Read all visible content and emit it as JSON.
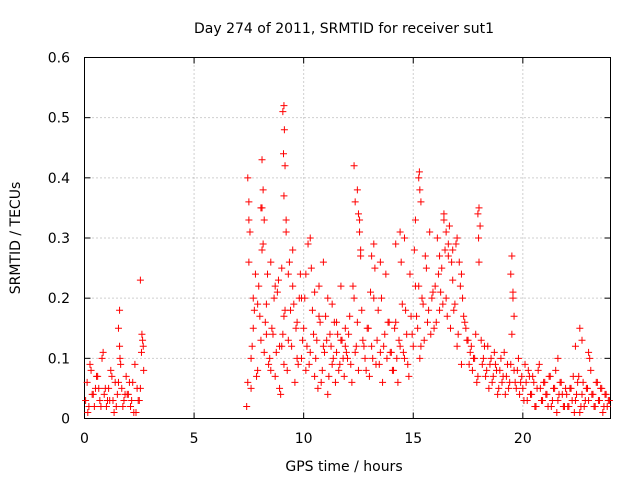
{
  "chart_data": {
    "type": "scatter",
    "title": "Day 274 of 2011, SRMTID for receiver sut1",
    "xlabel": "GPS time / hours",
    "ylabel": "SRMTID / TECUs",
    "xlim": [
      0,
      24
    ],
    "ylim": [
      0,
      0.6
    ],
    "xticks": [
      "0",
      "5",
      "10",
      "15",
      "20"
    ],
    "xtick_values": [
      0,
      5,
      10,
      15,
      20
    ],
    "yticks": [
      "0",
      "0.1",
      "0.2",
      "0.3",
      "0.4",
      "0.5",
      "0.6"
    ],
    "ytick_values": [
      0,
      0.1,
      0.2,
      0.3,
      0.4,
      0.5,
      0.6
    ],
    "grid": true,
    "marker": "+",
    "marker_color": "#ff0000",
    "series": [
      {
        "name": "sut1",
        "x": [
          0.05,
          0.12,
          0.2,
          0.3,
          0.4,
          0.5,
          0.6,
          0.7,
          0.8,
          0.9,
          1.0,
          1.1,
          1.2,
          1.3,
          1.4,
          1.5,
          1.6,
          1.7,
          1.8,
          1.9,
          2.0,
          2.1,
          2.2,
          2.3,
          2.4,
          2.5,
          2.6,
          2.7,
          0.15,
          0.35,
          0.55,
          0.75,
          0.95,
          1.15,
          1.35,
          1.55,
          1.75,
          1.95,
          2.15,
          2.35,
          2.55,
          0.25,
          0.45,
          0.65,
          0.85,
          1.05,
          1.25,
          1.45,
          1.65,
          1.85,
          2.05,
          2.25,
          2.45,
          2.65,
          1.6,
          1.55,
          1.62,
          2.55,
          2.62,
          2.68,
          7.4,
          7.5,
          7.6,
          7.7,
          7.8,
          7.9,
          8.0,
          8.1,
          8.2,
          8.3,
          8.4,
          8.5,
          8.6,
          8.7,
          8.8,
          8.9,
          9.0,
          9.1,
          9.2,
          9.3,
          9.4,
          9.5,
          9.6,
          9.7,
          9.8,
          9.9,
          7.45,
          7.55,
          7.65,
          7.75,
          7.85,
          7.95,
          8.05,
          8.15,
          8.25,
          8.35,
          8.45,
          8.55,
          8.65,
          8.75,
          8.85,
          8.95,
          9.05,
          9.15,
          9.25,
          9.35,
          9.45,
          9.55,
          9.65,
          9.75,
          9.85,
          9.95,
          7.5,
          7.6,
          7.7,
          7.9,
          8.1,
          8.2,
          8.3,
          8.5,
          8.7,
          8.9,
          9.0,
          9.1,
          9.3,
          9.5,
          9.7,
          9.9,
          7.45,
          7.5,
          8.1,
          8.05,
          8.15,
          9.1,
          9.05,
          9.12,
          9.08,
          9.15,
          9.1,
          9.2,
          10.0,
          10.1,
          10.2,
          10.3,
          10.4,
          10.5,
          10.6,
          10.7,
          10.8,
          10.9,
          11.0,
          11.1,
          11.2,
          11.3,
          11.4,
          11.5,
          11.6,
          11.7,
          11.8,
          11.9,
          10.05,
          10.15,
          10.25,
          10.35,
          10.45,
          10.55,
          10.65,
          10.75,
          10.85,
          10.95,
          11.05,
          11.15,
          11.25,
          11.35,
          11.45,
          11.55,
          11.65,
          11.75,
          11.85,
          11.95,
          10.1,
          10.3,
          10.5,
          10.7,
          10.9,
          11.1,
          11.3,
          11.5,
          11.7,
          11.9,
          12.0,
          12.1,
          12.2,
          12.3,
          12.4,
          12.5,
          12.6,
          12.7,
          12.8,
          12.9,
          13.0,
          13.1,
          13.2,
          13.3,
          13.4,
          13.5,
          13.6,
          13.7,
          13.8,
          13.9,
          12.05,
          12.15,
          12.25,
          12.35,
          12.45,
          12.55,
          12.65,
          12.75,
          12.85,
          12.95,
          13.05,
          13.15,
          13.25,
          13.35,
          13.45,
          13.55,
          13.65,
          13.75,
          13.85,
          13.95,
          12.5,
          12.55,
          12.6,
          12.45,
          12.3,
          12.35,
          13.1,
          13.2,
          13.5,
          14.0,
          14.1,
          14.2,
          14.3,
          14.4,
          14.5,
          14.6,
          14.7,
          14.8,
          14.9,
          15.0,
          15.1,
          15.2,
          15.3,
          15.4,
          15.5,
          15.6,
          15.7,
          15.8,
          15.9,
          14.05,
          14.15,
          14.25,
          14.35,
          14.45,
          14.55,
          14.65,
          14.75,
          14.85,
          14.95,
          15.05,
          15.15,
          15.25,
          15.35,
          15.45,
          15.55,
          15.65,
          15.75,
          15.85,
          15.95,
          15.25,
          15.3,
          15.35,
          15.28,
          14.4,
          14.2,
          14.6,
          15.1,
          16.0,
          16.1,
          16.2,
          16.3,
          16.4,
          16.5,
          16.6,
          16.7,
          16.8,
          16.9,
          17.0,
          17.1,
          17.2,
          17.3,
          17.4,
          17.5,
          17.6,
          17.7,
          17.8,
          17.9,
          16.05,
          16.15,
          16.25,
          16.35,
          16.45,
          16.55,
          16.65,
          16.75,
          16.85,
          16.95,
          17.05,
          17.15,
          17.25,
          17.35,
          17.45,
          17.55,
          17.65,
          17.75,
          17.85,
          17.95,
          16.4,
          16.6,
          16.5,
          16.8,
          17.0,
          16.2,
          17.2,
          18.0,
          18.1,
          18.2,
          18.3,
          18.4,
          18.5,
          18.6,
          18.7,
          18.8,
          18.9,
          19.0,
          19.1,
          19.2,
          19.3,
          19.4,
          19.5,
          19.6,
          19.7,
          19.8,
          19.9,
          18.05,
          18.15,
          18.25,
          18.35,
          18.45,
          18.55,
          18.65,
          18.75,
          18.85,
          18.95,
          19.05,
          19.15,
          19.25,
          19.35,
          19.45,
          19.55,
          19.65,
          19.75,
          19.85,
          19.95,
          17.95,
          18.0,
          17.98,
          19.5,
          19.55,
          19.45,
          19.6,
          20.0,
          20.1,
          20.2,
          20.3,
          20.4,
          20.5,
          20.6,
          20.7,
          20.8,
          20.9,
          21.0,
          21.1,
          21.2,
          21.3,
          21.4,
          21.5,
          21.6,
          21.7,
          21.8,
          21.9,
          20.05,
          20.15,
          20.25,
          20.35,
          20.45,
          20.55,
          20.65,
          20.75,
          20.85,
          20.95,
          21.05,
          21.15,
          21.25,
          21.35,
          21.45,
          21.55,
          21.65,
          21.75,
          21.85,
          21.95,
          22.0,
          22.1,
          22.2,
          22.3,
          22.4,
          22.5,
          22.6,
          22.7,
          22.8,
          22.9,
          23.0,
          23.1,
          23.2,
          23.3,
          23.4,
          23.5,
          23.6,
          23.7,
          23.8,
          23.9,
          22.05,
          22.15,
          22.25,
          22.35,
          22.45,
          22.55,
          22.65,
          22.75,
          22.85,
          22.95,
          23.05,
          23.15,
          23.25,
          23.35,
          23.45,
          23.55,
          23.65,
          23.75,
          23.85,
          23.95,
          21.6,
          22.4,
          22.6,
          22.7,
          23.0
        ],
        "y": [
          0.03,
          0.06,
          0.02,
          0.08,
          0.04,
          0.05,
          0.07,
          0.03,
          0.1,
          0.04,
          0.02,
          0.05,
          0.08,
          0.03,
          0.06,
          0.04,
          0.12,
          0.05,
          0.03,
          0.07,
          0.04,
          0.02,
          0.06,
          0.09,
          0.05,
          0.03,
          0.11,
          0.08,
          0.01,
          0.04,
          0.07,
          0.02,
          0.05,
          0.03,
          0.01,
          0.06,
          0.02,
          0.04,
          0.03,
          0.01,
          0.05,
          0.09,
          0.02,
          0.05,
          0.11,
          0.03,
          0.07,
          0.02,
          0.09,
          0.04,
          0.06,
          0.01,
          0.03,
          0.13,
          0.18,
          0.15,
          0.1,
          0.23,
          0.14,
          0.12,
          0.02,
          0.36,
          0.05,
          0.2,
          0.24,
          0.08,
          0.17,
          0.28,
          0.11,
          0.19,
          0.09,
          0.26,
          0.14,
          0.07,
          0.21,
          0.12,
          0.25,
          0.09,
          0.31,
          0.13,
          0.18,
          0.22,
          0.06,
          0.16,
          0.2,
          0.1,
          0.06,
          0.31,
          0.12,
          0.18,
          0.07,
          0.22,
          0.13,
          0.29,
          0.16,
          0.24,
          0.1,
          0.15,
          0.2,
          0.11,
          0.23,
          0.04,
          0.14,
          0.18,
          0.08,
          0.26,
          0.12,
          0.19,
          0.15,
          0.09,
          0.24,
          0.13,
          0.26,
          0.1,
          0.15,
          0.19,
          0.35,
          0.33,
          0.14,
          0.08,
          0.22,
          0.05,
          0.12,
          0.17,
          0.24,
          0.28,
          0.1,
          0.2,
          0.4,
          0.33,
          0.43,
          0.35,
          0.38,
          0.52,
          0.51,
          0.48,
          0.44,
          0.42,
          0.37,
          0.33,
          0.15,
          0.08,
          0.29,
          0.11,
          0.18,
          0.07,
          0.13,
          0.22,
          0.06,
          0.12,
          0.17,
          0.04,
          0.14,
          0.09,
          0.16,
          0.11,
          0.08,
          0.13,
          0.1,
          0.15,
          0.2,
          0.12,
          0.09,
          0.25,
          0.14,
          0.1,
          0.05,
          0.16,
          0.08,
          0.11,
          0.13,
          0.07,
          0.12,
          0.1,
          0.06,
          0.14,
          0.09,
          0.13,
          0.07,
          0.11,
          0.24,
          0.3,
          0.21,
          0.17,
          0.26,
          0.2,
          0.19,
          0.16,
          0.22,
          0.12,
          0.1,
          0.17,
          0.06,
          0.2,
          0.12,
          0.08,
          0.27,
          0.13,
          0.1,
          0.15,
          0.07,
          0.12,
          0.2,
          0.09,
          0.18,
          0.11,
          0.06,
          0.14,
          0.1,
          0.16,
          0.14,
          0.09,
          0.22,
          0.11,
          0.16,
          0.33,
          0.18,
          0.12,
          0.08,
          0.15,
          0.21,
          0.1,
          0.25,
          0.13,
          0.09,
          0.2,
          0.12,
          0.24,
          0.16,
          0.11,
          0.34,
          0.31,
          0.28,
          0.38,
          0.42,
          0.36,
          0.27,
          0.29,
          0.26,
          0.11,
          0.08,
          0.16,
          0.06,
          0.12,
          0.19,
          0.1,
          0.14,
          0.07,
          0.17,
          0.12,
          0.22,
          0.15,
          0.1,
          0.2,
          0.13,
          0.25,
          0.18,
          0.14,
          0.21,
          0.08,
          0.15,
          0.1,
          0.13,
          0.26,
          0.11,
          0.18,
          0.09,
          0.24,
          0.14,
          0.28,
          0.17,
          0.22,
          0.12,
          0.19,
          0.27,
          0.16,
          0.31,
          0.2,
          0.15,
          0.4,
          0.38,
          0.36,
          0.41,
          0.31,
          0.29,
          0.3,
          0.33,
          0.22,
          0.3,
          0.18,
          0.25,
          0.34,
          0.2,
          0.27,
          0.15,
          0.23,
          0.19,
          0.12,
          0.26,
          0.09,
          0.17,
          0.15,
          0.13,
          0.11,
          0.08,
          0.1,
          0.06,
          0.16,
          0.24,
          0.21,
          0.19,
          0.28,
          0.17,
          0.32,
          0.26,
          0.18,
          0.29,
          0.14,
          0.22,
          0.2,
          0.16,
          0.13,
          0.09,
          0.12,
          0.1,
          0.14,
          0.07,
          0.33,
          0.29,
          0.31,
          0.28,
          0.3,
          0.27,
          0.24,
          0.35,
          0.13,
          0.1,
          0.07,
          0.12,
          0.09,
          0.06,
          0.11,
          0.08,
          0.05,
          0.1,
          0.07,
          0.04,
          0.09,
          0.06,
          0.14,
          0.08,
          0.05,
          0.1,
          0.06,
          0.32,
          0.09,
          0.12,
          0.08,
          0.05,
          0.1,
          0.07,
          0.09,
          0.04,
          0.08,
          0.06,
          0.11,
          0.07,
          0.05,
          0.09,
          0.21,
          0.06,
          0.08,
          0.04,
          0.07,
          0.34,
          0.26,
          0.3,
          0.27,
          0.2,
          0.24,
          0.17,
          0.05,
          0.09,
          0.03,
          0.07,
          0.04,
          0.06,
          0.02,
          0.08,
          0.05,
          0.03,
          0.06,
          0.04,
          0.07,
          0.02,
          0.05,
          0.08,
          0.03,
          0.06,
          0.04,
          0.02,
          0.03,
          0.06,
          0.08,
          0.04,
          0.07,
          0.02,
          0.05,
          0.09,
          0.03,
          0.06,
          0.04,
          0.02,
          0.07,
          0.03,
          0.05,
          0.01,
          0.04,
          0.06,
          0.02,
          0.05,
          0.04,
          0.02,
          0.05,
          0.07,
          0.03,
          0.06,
          0.01,
          0.04,
          0.02,
          0.05,
          0.03,
          0.08,
          0.04,
          0.02,
          0.06,
          0.03,
          0.05,
          0.02,
          0.04,
          0.03,
          0.02,
          0.05,
          0.03,
          0.01,
          0.04,
          0.07,
          0.02,
          0.06,
          0.03,
          0.05,
          0.1,
          0.04,
          0.02,
          0.06,
          0.03,
          0.05,
          0.01,
          0.04,
          0.02,
          0.03,
          0.1,
          0.12,
          0.15,
          0.13,
          0.11
        ]
      }
    ]
  }
}
